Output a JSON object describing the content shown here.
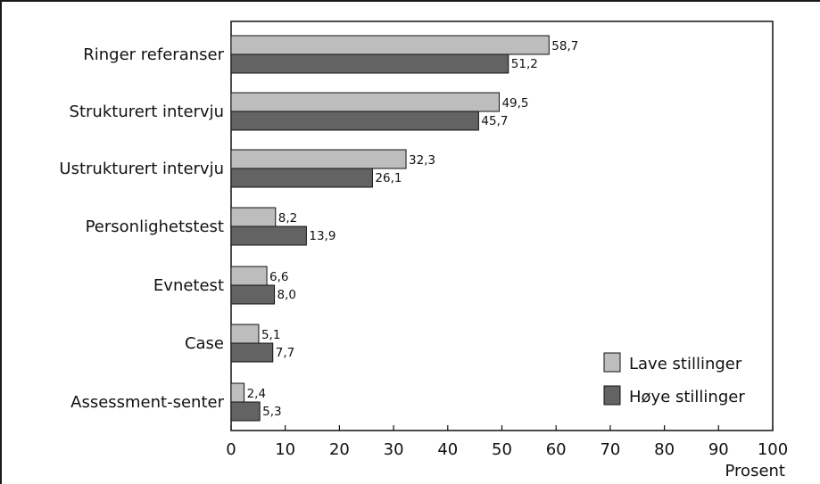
{
  "chart_data": {
    "type": "bar",
    "orientation": "horizontal",
    "categories": [
      "Ringer referanser",
      "Strukturert intervju",
      "Ustrukturert intervju",
      "Personlighetstest",
      "Evnetest",
      "Case",
      "Assessment-senter"
    ],
    "series": [
      {
        "name": "Lave stillinger",
        "color": "#bdbdbd",
        "values": [
          58.7,
          49.5,
          32.3,
          8.2,
          6.6,
          5.1,
          2.4
        ],
        "labels": [
          "58,7",
          "49,5",
          "32,3",
          "8,2",
          "6,6",
          "5,1",
          "2,4"
        ]
      },
      {
        "name": "Høye stillinger",
        "color": "#636363",
        "values": [
          51.2,
          45.7,
          26.1,
          13.9,
          8.0,
          7.7,
          5.3
        ],
        "labels": [
          "51,2",
          "45,7",
          "26,1",
          "13,9",
          "8,0",
          "7,7",
          "5,3"
        ]
      }
    ],
    "xlabel": "Prosent",
    "xlim": [
      0,
      100
    ],
    "xticks": [
      "0",
      "10",
      "20",
      "30",
      "40",
      "50",
      "60",
      "70",
      "80",
      "90",
      "100"
    ],
    "grid": false,
    "legend_position": "bottom-right"
  }
}
